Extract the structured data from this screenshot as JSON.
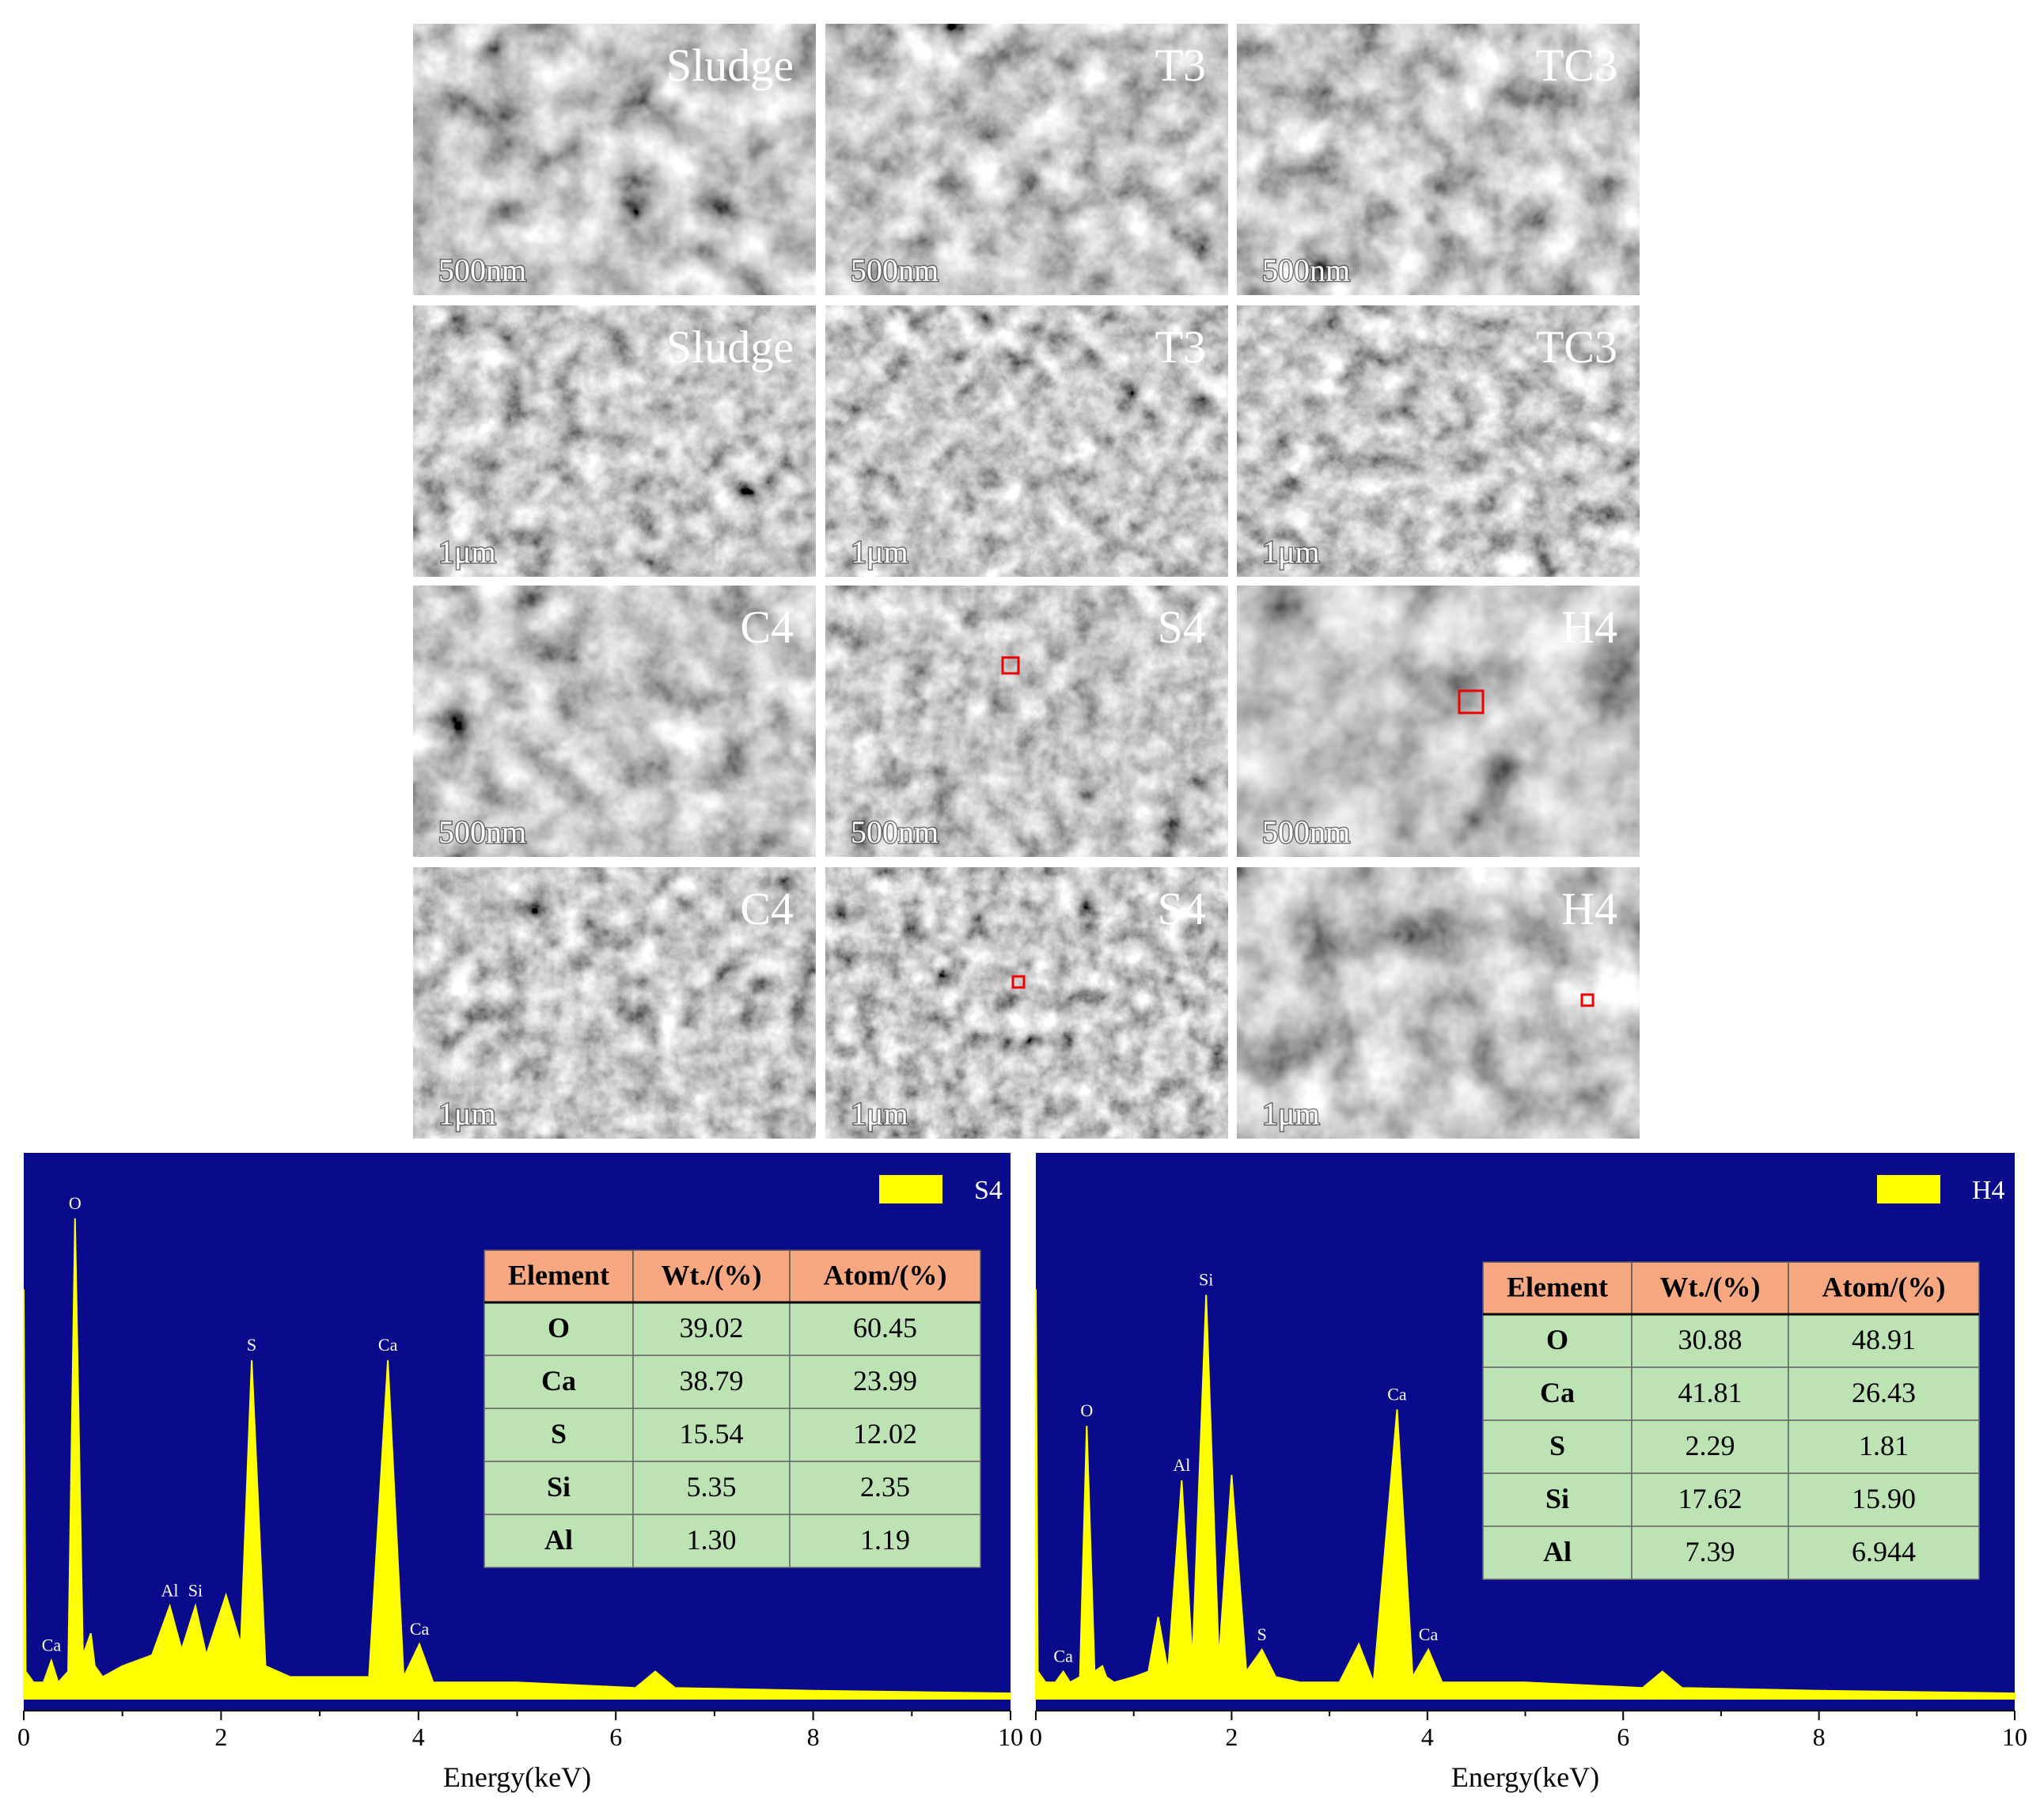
{
  "sem": {
    "panels": [
      {
        "label": "Sludge",
        "scale": "500nm"
      },
      {
        "label": "T3",
        "scale": "500nm"
      },
      {
        "label": "TC3",
        "scale": "500nm"
      },
      {
        "label": "Sludge",
        "scale": "1μm"
      },
      {
        "label": "T3",
        "scale": "1μm"
      },
      {
        "label": "TC3",
        "scale": "1μm"
      },
      {
        "label": "C4",
        "scale": "500nm"
      },
      {
        "label": "S4",
        "scale": "500nm"
      },
      {
        "label": "H4",
        "scale": "500nm"
      },
      {
        "label": "C4",
        "scale": "1μm"
      },
      {
        "label": "S4",
        "scale": "1μm"
      },
      {
        "label": "H4",
        "scale": "1μm"
      }
    ]
  },
  "chart_data": [
    {
      "type": "area",
      "x_label": "Energy(keV)",
      "xlim": [
        0,
        10
      ],
      "xticks": [
        0,
        2,
        4,
        6,
        8,
        10
      ],
      "ylim": [
        0,
        100
      ],
      "background": "#0a0a8c",
      "x": [
        0,
        0.02,
        0.1,
        0.2,
        0.28,
        0.35,
        0.45,
        0.52,
        0.6,
        0.68,
        0.72,
        0.8,
        1.0,
        1.3,
        1.48,
        1.6,
        1.74,
        1.85,
        2.05,
        2.2,
        2.31,
        2.45,
        2.7,
        3.5,
        3.69,
        3.85,
        4.01,
        4.15,
        5,
        6.2,
        6.4,
        6.6,
        8,
        10
      ],
      "series": [
        {
          "name": "S4",
          "color": "#ffff00",
          "values": [
            75,
            5,
            3,
            3,
            7,
            3,
            5,
            88,
            8,
            12,
            6,
            4,
            6,
            8,
            17,
            9,
            17,
            8,
            19,
            10,
            62,
            6,
            4,
            4,
            62,
            4,
            10,
            3,
            3,
            2,
            5,
            2,
            1.5,
            1
          ]
        }
      ],
      "peaks": [
        {
          "label": "Ca",
          "x": 0.28
        },
        {
          "label": "O",
          "x": 0.52
        },
        {
          "label": "Al",
          "x": 1.48
        },
        {
          "label": "Si",
          "x": 1.74
        },
        {
          "label": "S",
          "x": 2.31
        },
        {
          "label": "Ca",
          "x": 3.69
        },
        {
          "label": "Ca",
          "x": 4.01
        }
      ],
      "table": {
        "columns": [
          "Element",
          "Wt./(%)",
          "Atom/(%)"
        ],
        "rows": [
          [
            "O",
            "39.02",
            "60.45"
          ],
          [
            "Ca",
            "38.79",
            "23.99"
          ],
          [
            "S",
            "15.54",
            "12.02"
          ],
          [
            "Si",
            "5.35",
            "2.35"
          ],
          [
            "Al",
            "1.30",
            "1.19"
          ]
        ]
      }
    },
    {
      "type": "area",
      "x_label": "Energy(keV)",
      "xlim": [
        0,
        10
      ],
      "xticks": [
        0,
        2,
        4,
        6,
        8,
        10
      ],
      "ylim": [
        0,
        100
      ],
      "background": "#0a0a8c",
      "x": [
        0,
        0.02,
        0.1,
        0.2,
        0.28,
        0.35,
        0.45,
        0.52,
        0.6,
        0.68,
        0.72,
        0.8,
        1.0,
        1.15,
        1.25,
        1.35,
        1.49,
        1.6,
        1.74,
        1.87,
        2.0,
        2.15,
        2.31,
        2.45,
        2.7,
        3.1,
        3.3,
        3.45,
        3.69,
        3.85,
        4.01,
        4.15,
        5,
        6.2,
        6.4,
        6.6,
        8,
        10
      ],
      "series": [
        {
          "name": "H4",
          "color": "#ffff00",
          "values": [
            75,
            5,
            3,
            3,
            5,
            3,
            4,
            50,
            5,
            6,
            4,
            3,
            4,
            5,
            15,
            5,
            40,
            7,
            74,
            7,
            41,
            5,
            9,
            4,
            3,
            3,
            10,
            3,
            53,
            4,
            9,
            3,
            3,
            2,
            5,
            2,
            1.5,
            1
          ]
        }
      ],
      "peaks": [
        {
          "label": "Ca",
          "x": 0.28
        },
        {
          "label": "O",
          "x": 0.52
        },
        {
          "label": "Al",
          "x": 1.49
        },
        {
          "label": "Si",
          "x": 1.74
        },
        {
          "label": "S",
          "x": 2.31
        },
        {
          "label": "Ca",
          "x": 3.69
        },
        {
          "label": "Ca",
          "x": 4.01
        }
      ],
      "table": {
        "columns": [
          "Element",
          "Wt./(%)",
          "Atom/(%)"
        ],
        "rows": [
          [
            "O",
            "30.88",
            "48.91"
          ],
          [
            "Ca",
            "41.81",
            "26.43"
          ],
          [
            "S",
            "2.29",
            "1.81"
          ],
          [
            "Si",
            "17.62",
            "15.90"
          ],
          [
            "Al",
            "7.39",
            "6.944"
          ]
        ]
      }
    }
  ]
}
